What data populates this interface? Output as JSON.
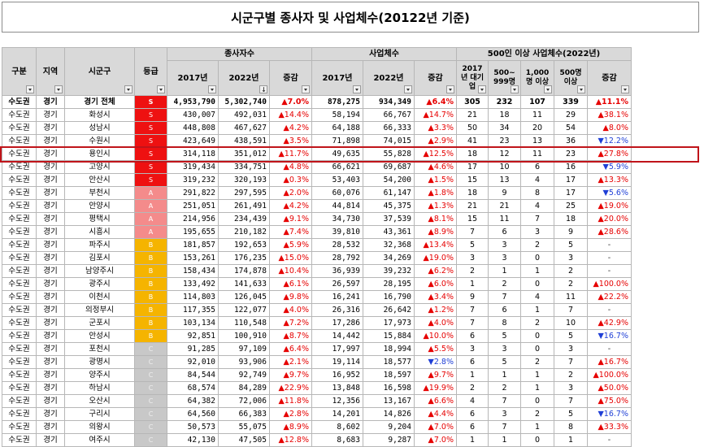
{
  "title": "시군구별 종사자 및 사업체수(20122년 기준)",
  "colors": {
    "S": "#ee1111",
    "A": "#f48b8b",
    "B": "#f5b400",
    "C": "#c8c8c8",
    "up": "#e60000",
    "down": "#1f3fd6",
    "highlight": "#c0141a"
  },
  "headers": {
    "gubun": "구분",
    "region": "지역",
    "city": "시군구",
    "grade": "등급",
    "workers": "종사자수",
    "firms": "사업체수",
    "large": "500인 이상 사업체수(2022년)",
    "y2017": "2017년",
    "y2022": "2022년",
    "change": "증감",
    "large_2017": "2017년 대기업",
    "large_500_999": "500~ 999명",
    "large_1000": "1,000명 이상",
    "large_500": "500명 이상"
  },
  "rows": [
    {
      "gubun": "수도권",
      "region": "경기",
      "city": "경기 전체",
      "grade": "S",
      "w17": "4,953,790",
      "w22": "5,302,740",
      "wc": "▲7.0%",
      "wd": "up",
      "f17": "878,275",
      "f22": "934,349",
      "fc": "▲6.4%",
      "fd": "up",
      "l17": "305",
      "l5": "232",
      "l1000": "107",
      "l500": "339",
      "lc": "▲11.1%",
      "ld": "up",
      "total": true
    },
    {
      "gubun": "수도권",
      "region": "경기",
      "city": "화성시",
      "grade": "S",
      "w17": "430,007",
      "w22": "492,031",
      "wc": "▲14.4%",
      "wd": "up",
      "f17": "58,194",
      "f22": "66,767",
      "fc": "▲14.7%",
      "fd": "up",
      "l17": "21",
      "l5": "18",
      "l1000": "11",
      "l500": "29",
      "lc": "▲38.1%",
      "ld": "up"
    },
    {
      "gubun": "수도권",
      "region": "경기",
      "city": "성남시",
      "grade": "S",
      "w17": "448,808",
      "w22": "467,627",
      "wc": "▲4.2%",
      "wd": "up",
      "f17": "64,188",
      "f22": "66,333",
      "fc": "▲3.3%",
      "fd": "up",
      "l17": "50",
      "l5": "34",
      "l1000": "20",
      "l500": "54",
      "lc": "▲8.0%",
      "ld": "up"
    },
    {
      "gubun": "수도권",
      "region": "경기",
      "city": "수원시",
      "grade": "S",
      "w17": "423,649",
      "w22": "438,591",
      "wc": "▲3.5%",
      "wd": "up",
      "f17": "71,898",
      "f22": "74,015",
      "fc": "▲2.9%",
      "fd": "up",
      "l17": "41",
      "l5": "23",
      "l1000": "13",
      "l500": "36",
      "lc": "▼12.2%",
      "ld": "down"
    },
    {
      "gubun": "수도권",
      "region": "경기",
      "city": "용인시",
      "grade": "S",
      "w17": "314,118",
      "w22": "351,012",
      "wc": "▲11.7%",
      "wd": "up",
      "f17": "49,635",
      "f22": "55,828",
      "fc": "▲12.5%",
      "fd": "up",
      "l17": "18",
      "l5": "12",
      "l1000": "11",
      "l500": "23",
      "lc": "▲27.8%",
      "ld": "up"
    },
    {
      "gubun": "수도권",
      "region": "경기",
      "city": "고양시",
      "grade": "S",
      "w17": "319,434",
      "w22": "334,751",
      "wc": "▲4.8%",
      "wd": "up",
      "f17": "66,621",
      "f22": "69,687",
      "fc": "▲4.6%",
      "fd": "up",
      "l17": "17",
      "l5": "10",
      "l1000": "6",
      "l500": "16",
      "lc": "▼5.9%",
      "ld": "down"
    },
    {
      "gubun": "수도권",
      "region": "경기",
      "city": "안산시",
      "grade": "S",
      "w17": "319,232",
      "w22": "320,193",
      "wc": "▲0.3%",
      "wd": "up",
      "f17": "53,403",
      "f22": "54,200",
      "fc": "▲1.5%",
      "fd": "up",
      "l17": "15",
      "l5": "13",
      "l1000": "4",
      "l500": "17",
      "lc": "▲13.3%",
      "ld": "up"
    },
    {
      "gubun": "수도권",
      "region": "경기",
      "city": "부천시",
      "grade": "A",
      "w17": "291,822",
      "w22": "297,595",
      "wc": "▲2.0%",
      "wd": "up",
      "f17": "60,076",
      "f22": "61,147",
      "fc": "▲1.8%",
      "fd": "up",
      "l17": "18",
      "l5": "9",
      "l1000": "8",
      "l500": "17",
      "lc": "▼5.6%",
      "ld": "down"
    },
    {
      "gubun": "수도권",
      "region": "경기",
      "city": "안양시",
      "grade": "A",
      "w17": "251,051",
      "w22": "261,491",
      "wc": "▲4.2%",
      "wd": "up",
      "f17": "44,814",
      "f22": "45,375",
      "fc": "▲1.3%",
      "fd": "up",
      "l17": "21",
      "l5": "21",
      "l1000": "4",
      "l500": "25",
      "lc": "▲19.0%",
      "ld": "up"
    },
    {
      "gubun": "수도권",
      "region": "경기",
      "city": "평택시",
      "grade": "A",
      "w17": "214,956",
      "w22": "234,439",
      "wc": "▲9.1%",
      "wd": "up",
      "f17": "34,730",
      "f22": "37,539",
      "fc": "▲8.1%",
      "fd": "up",
      "l17": "15",
      "l5": "11",
      "l1000": "7",
      "l500": "18",
      "lc": "▲20.0%",
      "ld": "up"
    },
    {
      "gubun": "수도권",
      "region": "경기",
      "city": "시흥시",
      "grade": "A",
      "w17": "195,655",
      "w22": "210,182",
      "wc": "▲7.4%",
      "wd": "up",
      "f17": "39,810",
      "f22": "43,361",
      "fc": "▲8.9%",
      "fd": "up",
      "l17": "7",
      "l5": "6",
      "l1000": "3",
      "l500": "9",
      "lc": "▲28.6%",
      "ld": "up"
    },
    {
      "gubun": "수도권",
      "region": "경기",
      "city": "파주시",
      "grade": "B",
      "w17": "181,857",
      "w22": "192,653",
      "wc": "▲5.9%",
      "wd": "up",
      "f17": "28,532",
      "f22": "32,368",
      "fc": "▲13.4%",
      "fd": "up",
      "l17": "5",
      "l5": "3",
      "l1000": "2",
      "l500": "5",
      "lc": "-",
      "ld": "flat"
    },
    {
      "gubun": "수도권",
      "region": "경기",
      "city": "김포시",
      "grade": "B",
      "w17": "153,261",
      "w22": "176,235",
      "wc": "▲15.0%",
      "wd": "up",
      "f17": "28,792",
      "f22": "34,269",
      "fc": "▲19.0%",
      "fd": "up",
      "l17": "3",
      "l5": "3",
      "l1000": "0",
      "l500": "3",
      "lc": "-",
      "ld": "flat"
    },
    {
      "gubun": "수도권",
      "region": "경기",
      "city": "남양주시",
      "grade": "B",
      "w17": "158,434",
      "w22": "174,878",
      "wc": "▲10.4%",
      "wd": "up",
      "f17": "36,939",
      "f22": "39,232",
      "fc": "▲6.2%",
      "fd": "up",
      "l17": "2",
      "l5": "1",
      "l1000": "1",
      "l500": "2",
      "lc": "-",
      "ld": "flat"
    },
    {
      "gubun": "수도권",
      "region": "경기",
      "city": "광주시",
      "grade": "B",
      "w17": "133,492",
      "w22": "141,633",
      "wc": "▲6.1%",
      "wd": "up",
      "f17": "26,597",
      "f22": "28,195",
      "fc": "▲6.0%",
      "fd": "up",
      "l17": "1",
      "l5": "2",
      "l1000": "0",
      "l500": "2",
      "lc": "▲100.0%",
      "ld": "up"
    },
    {
      "gubun": "수도권",
      "region": "경기",
      "city": "이천시",
      "grade": "B",
      "w17": "114,803",
      "w22": "126,045",
      "wc": "▲9.8%",
      "wd": "up",
      "f17": "16,241",
      "f22": "16,790",
      "fc": "▲3.4%",
      "fd": "up",
      "l17": "9",
      "l5": "7",
      "l1000": "4",
      "l500": "11",
      "lc": "▲22.2%",
      "ld": "up"
    },
    {
      "gubun": "수도권",
      "region": "경기",
      "city": "의정부시",
      "grade": "B",
      "w17": "117,355",
      "w22": "122,077",
      "wc": "▲4.0%",
      "wd": "up",
      "f17": "26,316",
      "f22": "26,642",
      "fc": "▲1.2%",
      "fd": "up",
      "l17": "7",
      "l5": "6",
      "l1000": "1",
      "l500": "7",
      "lc": "-",
      "ld": "flat"
    },
    {
      "gubun": "수도권",
      "region": "경기",
      "city": "군포시",
      "grade": "B",
      "w17": "103,134",
      "w22": "110,548",
      "wc": "▲7.2%",
      "wd": "up",
      "f17": "17,286",
      "f22": "17,973",
      "fc": "▲4.0%",
      "fd": "up",
      "l17": "7",
      "l5": "8",
      "l1000": "2",
      "l500": "10",
      "lc": "▲42.9%",
      "ld": "up"
    },
    {
      "gubun": "수도권",
      "region": "경기",
      "city": "안성시",
      "grade": "B",
      "w17": "92,851",
      "w22": "100,910",
      "wc": "▲8.7%",
      "wd": "up",
      "f17": "14,442",
      "f22": "15,884",
      "fc": "▲10.0%",
      "fd": "up",
      "l17": "6",
      "l5": "5",
      "l1000": "0",
      "l500": "5",
      "lc": "▼16.7%",
      "ld": "down"
    },
    {
      "gubun": "수도권",
      "region": "경기",
      "city": "포천시",
      "grade": "C",
      "w17": "91,285",
      "w22": "97,109",
      "wc": "▲6.4%",
      "wd": "up",
      "f17": "17,997",
      "f22": "18,994",
      "fc": "▲5.5%",
      "fd": "up",
      "l17": "3",
      "l5": "3",
      "l1000": "0",
      "l500": "3",
      "lc": "-",
      "ld": "flat"
    },
    {
      "gubun": "수도권",
      "region": "경기",
      "city": "광명시",
      "grade": "C",
      "w17": "92,010",
      "w22": "93,906",
      "wc": "▲2.1%",
      "wd": "up",
      "f17": "19,114",
      "f22": "18,577",
      "fc": "▼2.8%",
      "fd": "down",
      "l17": "6",
      "l5": "5",
      "l1000": "2",
      "l500": "7",
      "lc": "▲16.7%",
      "ld": "up"
    },
    {
      "gubun": "수도권",
      "region": "경기",
      "city": "양주시",
      "grade": "C",
      "w17": "84,544",
      "w22": "92,749",
      "wc": "▲9.7%",
      "wd": "up",
      "f17": "16,952",
      "f22": "18,597",
      "fc": "▲9.7%",
      "fd": "up",
      "l17": "1",
      "l5": "1",
      "l1000": "1",
      "l500": "2",
      "lc": "▲100.0%",
      "ld": "up"
    },
    {
      "gubun": "수도권",
      "region": "경기",
      "city": "하남시",
      "grade": "C",
      "w17": "68,574",
      "w22": "84,289",
      "wc": "▲22.9%",
      "wd": "up",
      "f17": "13,848",
      "f22": "16,598",
      "fc": "▲19.9%",
      "fd": "up",
      "l17": "2",
      "l5": "2",
      "l1000": "1",
      "l500": "3",
      "lc": "▲50.0%",
      "ld": "up"
    },
    {
      "gubun": "수도권",
      "region": "경기",
      "city": "오산시",
      "grade": "C",
      "w17": "64,382",
      "w22": "72,006",
      "wc": "▲11.8%",
      "wd": "up",
      "f17": "12,356",
      "f22": "13,167",
      "fc": "▲6.6%",
      "fd": "up",
      "l17": "4",
      "l5": "7",
      "l1000": "0",
      "l500": "7",
      "lc": "▲75.0%",
      "ld": "up"
    },
    {
      "gubun": "수도권",
      "region": "경기",
      "city": "구리시",
      "grade": "C",
      "w17": "64,560",
      "w22": "66,383",
      "wc": "▲2.8%",
      "wd": "up",
      "f17": "14,201",
      "f22": "14,826",
      "fc": "▲4.4%",
      "fd": "up",
      "l17": "6",
      "l5": "3",
      "l1000": "2",
      "l500": "5",
      "lc": "▼16.7%",
      "ld": "down"
    },
    {
      "gubun": "수도권",
      "region": "경기",
      "city": "의왕시",
      "grade": "C",
      "w17": "50,573",
      "w22": "55,075",
      "wc": "▲8.9%",
      "wd": "up",
      "f17": "8,602",
      "f22": "9,204",
      "fc": "▲7.0%",
      "fd": "up",
      "l17": "6",
      "l5": "7",
      "l1000": "1",
      "l500": "8",
      "lc": "▲33.3%",
      "ld": "up"
    },
    {
      "gubun": "수도권",
      "region": "경기",
      "city": "여주시",
      "grade": "C",
      "w17": "42,130",
      "w22": "47,505",
      "wc": "▲12.8%",
      "wd": "up",
      "f17": "8,683",
      "f22": "9,287",
      "fc": "▲7.0%",
      "fd": "up",
      "l17": "1",
      "l5": "1",
      "l1000": "0",
      "l500": "1",
      "lc": "-",
      "ld": "flat"
    }
  ]
}
